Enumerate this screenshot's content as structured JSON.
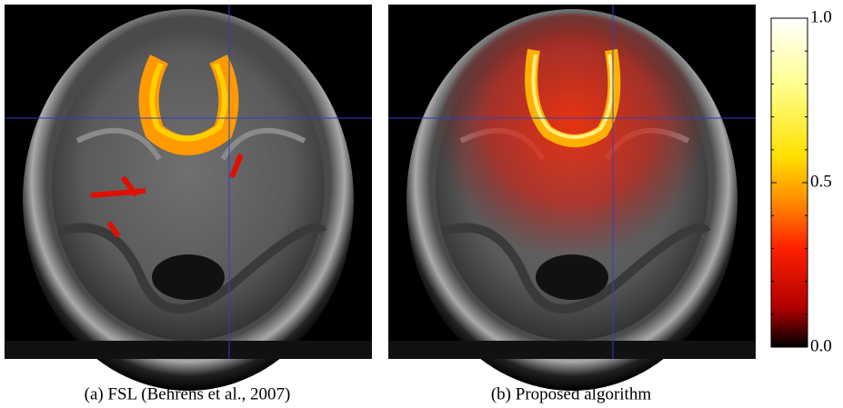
{
  "panels": [
    {
      "caption": "(a) FSL (Behrens et al., 2007)"
    },
    {
      "caption": "(b) Proposed algorithm"
    }
  ],
  "colorbar": {
    "lim": [
      0,
      1
    ],
    "ticks": [
      {
        "value": 0,
        "label": "0.0"
      },
      0.5,
      {
        "value": 1,
        "label": "1.0"
      }
    ],
    "minor_ticks": [
      0.1,
      0.2,
      0.3,
      0.4,
      0.6,
      0.7,
      0.8,
      0.9
    ]
  }
}
